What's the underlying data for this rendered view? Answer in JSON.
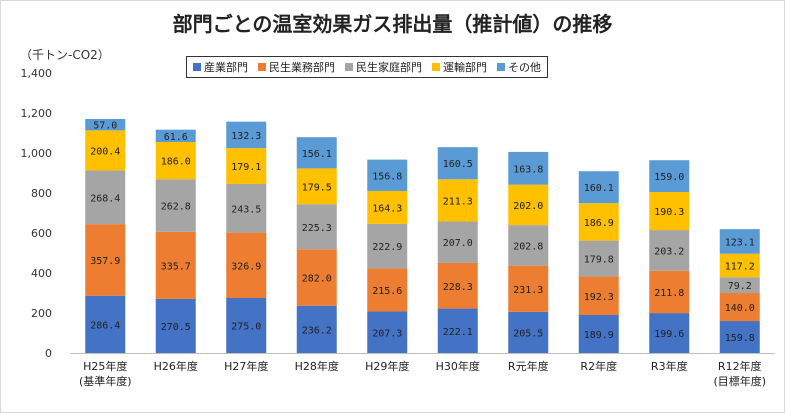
{
  "chart_data": {
    "type": "bar",
    "stacked": true,
    "title": "部門ごとの温室効果ガス排出量（推計値）の推移",
    "ylabel": "（千トン-CO2）",
    "ylim": [
      0,
      1400
    ],
    "yticks": [
      "0",
      "200",
      "400",
      "600",
      "800",
      "1,000",
      "1,200",
      "1,400"
    ],
    "ytick_values": [
      0,
      200,
      400,
      600,
      800,
      1000,
      1200,
      1400
    ],
    "grid": false,
    "legend_position": "top",
    "categories": [
      [
        "H25年度",
        "(基準年度)"
      ],
      [
        "H26年度"
      ],
      [
        "H27年度"
      ],
      [
        "H28年度"
      ],
      [
        "H29年度"
      ],
      [
        "H30年度"
      ],
      [
        "R元年度"
      ],
      [
        "R2年度"
      ],
      [
        "R3年度"
      ],
      [
        "R12年度",
        "(目標年度)"
      ]
    ],
    "series": [
      {
        "name": "産業部門",
        "color": "#4472c4",
        "values": [
          286.4,
          270.5,
          275.0,
          236.2,
          207.3,
          222.1,
          205.5,
          189.9,
          199.6,
          159.8
        ],
        "labels": [
          "286.4",
          "270.5",
          "275.0",
          "236.2",
          "207.3",
          "222.1",
          "205.5",
          "189.9",
          "199.6",
          "159.8"
        ]
      },
      {
        "name": "民生業務部門",
        "color": "#ed7d31",
        "values": [
          357.9,
          335.7,
          326.9,
          282.0,
          215.6,
          228.3,
          231.3,
          192.3,
          211.8,
          140.0
        ],
        "labels": [
          "357.9",
          "335.7",
          "326.9",
          "282.0",
          "215.6",
          "228.3",
          "231.3",
          "192.3",
          "211.8",
          "140.0"
        ]
      },
      {
        "name": "民生家庭部門",
        "color": "#a5a5a5",
        "values": [
          268.4,
          262.8,
          243.5,
          225.3,
          222.9,
          207.0,
          202.8,
          179.8,
          203.2,
          79.2
        ],
        "labels": [
          "268.4",
          "262.8",
          "243.5",
          "225.3",
          "222.9",
          "207.0",
          "202.8",
          "179.8",
          "203.2",
          "79.2"
        ]
      },
      {
        "name": "運輸部門",
        "color": "#ffc000",
        "values": [
          200.4,
          186.0,
          179.1,
          179.5,
          164.3,
          211.3,
          202.0,
          186.9,
          190.3,
          117.2
        ],
        "labels": [
          "200.4",
          "186.0",
          "179.1",
          "179.5",
          "164.3",
          "211.3",
          "202.0",
          "186.9",
          "190.3",
          "117.2"
        ]
      },
      {
        "name": "その他",
        "color": "#5b9bd5",
        "values": [
          57.0,
          61.6,
          132.3,
          156.1,
          156.8,
          160.5,
          163.8,
          160.1,
          159.0,
          123.1
        ],
        "labels": [
          "57.0",
          "61.6",
          "132.3",
          "156.1",
          "156.8",
          "160.5",
          "163.8",
          "160.1",
          "159.0",
          "123.1"
        ]
      }
    ]
  }
}
